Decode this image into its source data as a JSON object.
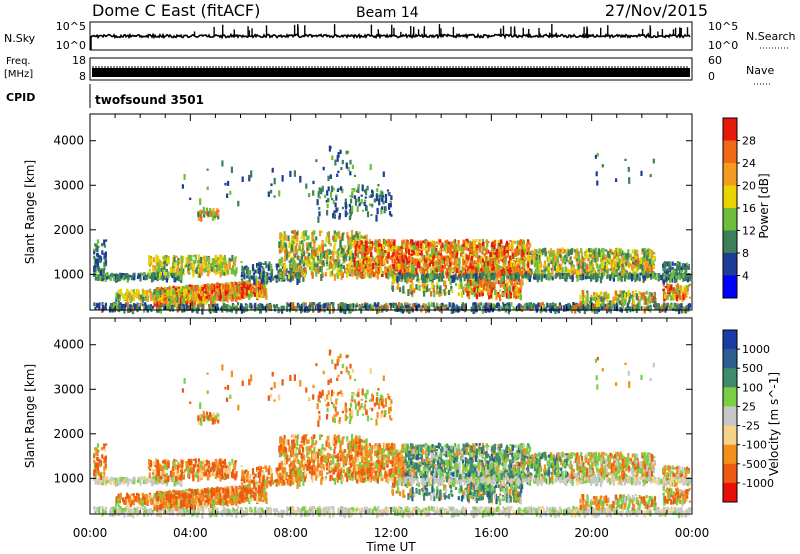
{
  "header": {
    "title": "Dome C East (fitACF)",
    "beam": "Beam 14",
    "date": "27/Nov/2015"
  },
  "top_strips": {
    "nsky_label": "N.Sky",
    "nsearch_label": "N.Search",
    "nsky_tick_top": "10^5",
    "nsky_tick_bottom": "10^0",
    "right_tick_top": "10^5",
    "right_tick_bottom": "10^0",
    "freq_label_1": "Freq.",
    "freq_label_2": "[MHz]",
    "freq_tick_top": "18",
    "freq_tick_bottom": "8",
    "nave_label": "Nave",
    "nave_tick_top": "60",
    "nave_tick_bottom": "0",
    "cpid_label": "CPID",
    "cpid_value": "twofsound 3501"
  },
  "chart_data": [
    {
      "type": "heatmap",
      "panel": "power",
      "ylabel": "Slant Range [km]",
      "ylim": [
        200,
        4600
      ],
      "yticks": [
        "1000",
        "2000",
        "3000",
        "4000"
      ],
      "xticks": [
        "00:00",
        "04:00",
        "08:00",
        "12:00",
        "16:00",
        "20:00",
        "00:00"
      ],
      "colorbar_label": "Power [dB]",
      "colorbar_ticks": [
        "4",
        "8",
        "12",
        "16",
        "20",
        "24",
        "28"
      ],
      "colors": [
        "#0000ff",
        "#1e3c96",
        "#3c7f5a",
        "#6fbd3d",
        "#e8d500",
        "#f39b22",
        "#ee6a14",
        "#e61a0b"
      ]
    },
    {
      "type": "heatmap",
      "panel": "velocity",
      "ylabel": "Slant Range [km]",
      "ylim": [
        200,
        4600
      ],
      "yticks": [
        "1000",
        "2000",
        "3000",
        "4000"
      ],
      "xticks": [
        "00:00",
        "04:00",
        "08:00",
        "12:00",
        "16:00",
        "20:00",
        "00:00"
      ],
      "xlabel": "Time UT",
      "colorbar_label": "Velocity [m s^-1]",
      "colorbar_ticks": [
        "1000",
        "500",
        "100",
        "25",
        "-25",
        "-100",
        "-500",
        "-1000"
      ],
      "colors": [
        "#1b3ca6",
        "#2c5f8f",
        "#3f8b6c",
        "#7bcf45",
        "#c8c8c8",
        "#f6d38a",
        "#f28f1d",
        "#ee5a12",
        "#e60f0a"
      ]
    }
  ]
}
